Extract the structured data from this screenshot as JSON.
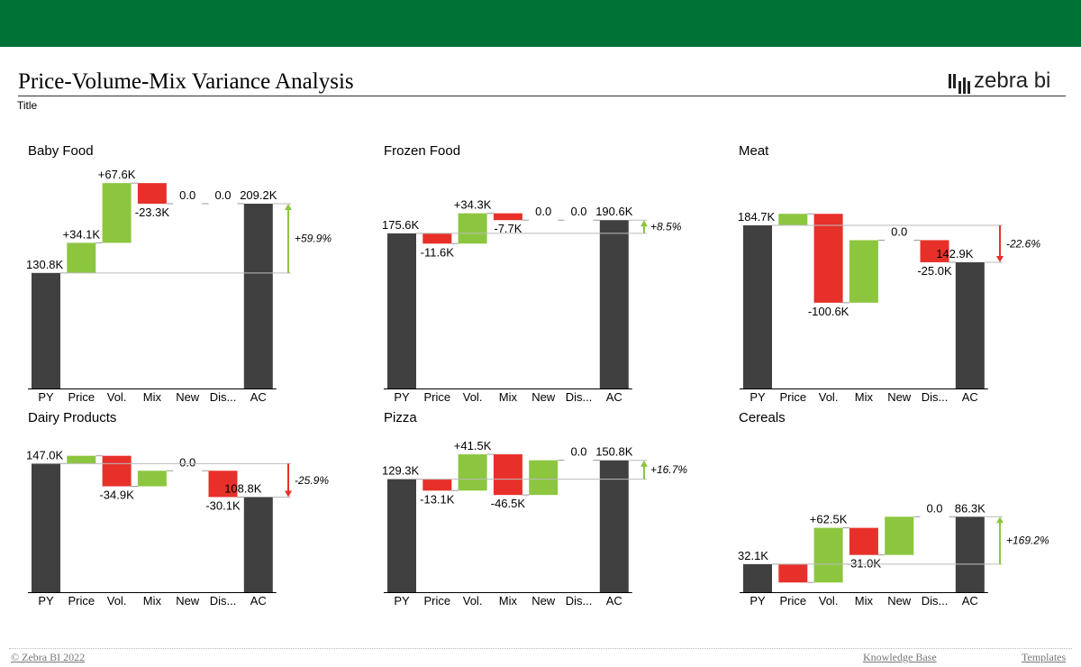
{
  "header": {
    "title": "Price-Volume-Mix Variance Analysis",
    "subtitle": "Title",
    "brand": "zebra bi",
    "bar_color": "#007236"
  },
  "footer": {
    "copyright": "© Zebra BI 2022",
    "knowledge_base": "Knowledge Base",
    "templates": "Templates"
  },
  "colors": {
    "total": "#404040",
    "positive": "#8CC63F",
    "negative": "#E8302A"
  },
  "chart_data": [
    {
      "type": "waterfall",
      "title": "Baby Food",
      "categories": [
        "PY",
        "Price",
        "Vol.",
        "Mix",
        "New",
        "Dis...",
        "AC"
      ],
      "start": 130.8,
      "deltas": [
        34.1,
        67.6,
        -23.3,
        0.0,
        0.0
      ],
      "end": 209.2,
      "labels": [
        "130.8K",
        "+34.1K",
        "+67.6K",
        "-23.3K",
        "0.0",
        "0.0",
        "209.2K"
      ],
      "variance_pct": "+59.9%"
    },
    {
      "type": "waterfall",
      "title": "Frozen Food",
      "categories": [
        "PY",
        "Price",
        "Vol.",
        "Mix",
        "New",
        "Dis...",
        "AC"
      ],
      "start": 175.6,
      "deltas": [
        -11.6,
        34.3,
        -7.7,
        0.0,
        0.0
      ],
      "end": 190.6,
      "labels": [
        "175.6K",
        "-11.6K",
        "+34.3K",
        "-7.7K",
        "0.0",
        "0.0",
        "190.6K"
      ],
      "variance_pct": "+8.5%"
    },
    {
      "type": "waterfall",
      "title": "Meat",
      "categories": [
        "PY",
        "Price",
        "Vol.",
        "Mix",
        "New",
        "Dis...",
        "AC"
      ],
      "start": 184.7,
      "deltas": [
        13.0,
        -100.6,
        70.8,
        0.0,
        -25.0
      ],
      "end": 142.9,
      "labels": [
        "184.7K",
        "",
        "-100.6K",
        "",
        "0.0",
        "-25.0K",
        "142.9K"
      ],
      "variance_pct": "-22.6%"
    },
    {
      "type": "waterfall",
      "title": "Dairy Products",
      "categories": [
        "PY",
        "Price",
        "Vol.",
        "Mix",
        "New",
        "Dis...",
        "AC"
      ],
      "start": 147.0,
      "deltas": [
        9.0,
        -34.9,
        17.8,
        0.0,
        -30.1
      ],
      "end": 108.8,
      "labels": [
        "147.0K",
        "",
        "-34.9K",
        "",
        "0.0",
        "-30.1K",
        "108.8K"
      ],
      "variance_pct": "-25.9%"
    },
    {
      "type": "waterfall",
      "title": "Pizza",
      "categories": [
        "PY",
        "Price",
        "Vol.",
        "Mix",
        "New",
        "Dis...",
        "AC"
      ],
      "start": 129.3,
      "deltas": [
        -13.1,
        41.5,
        -46.5,
        39.7,
        0.0
      ],
      "end": 150.8,
      "labels": [
        "129.3K",
        "-13.1K",
        "+41.5K",
        "-46.5K",
        "",
        "0.0",
        "150.8K"
      ],
      "variance_pct": "+16.7%"
    },
    {
      "type": "waterfall",
      "title": "Cereals",
      "categories": [
        "PY",
        "Price",
        "Vol.",
        "Mix",
        "New",
        "Dis...",
        "AC"
      ],
      "start": 32.1,
      "deltas": [
        -21.0,
        62.5,
        -31.0,
        43.7,
        0.0
      ],
      "end": 86.3,
      "labels": [
        "32.1K",
        "",
        "+62.5K",
        "-31.0K",
        "",
        "0.0",
        "86.3K"
      ],
      "variance_pct": "+169.2%"
    }
  ]
}
